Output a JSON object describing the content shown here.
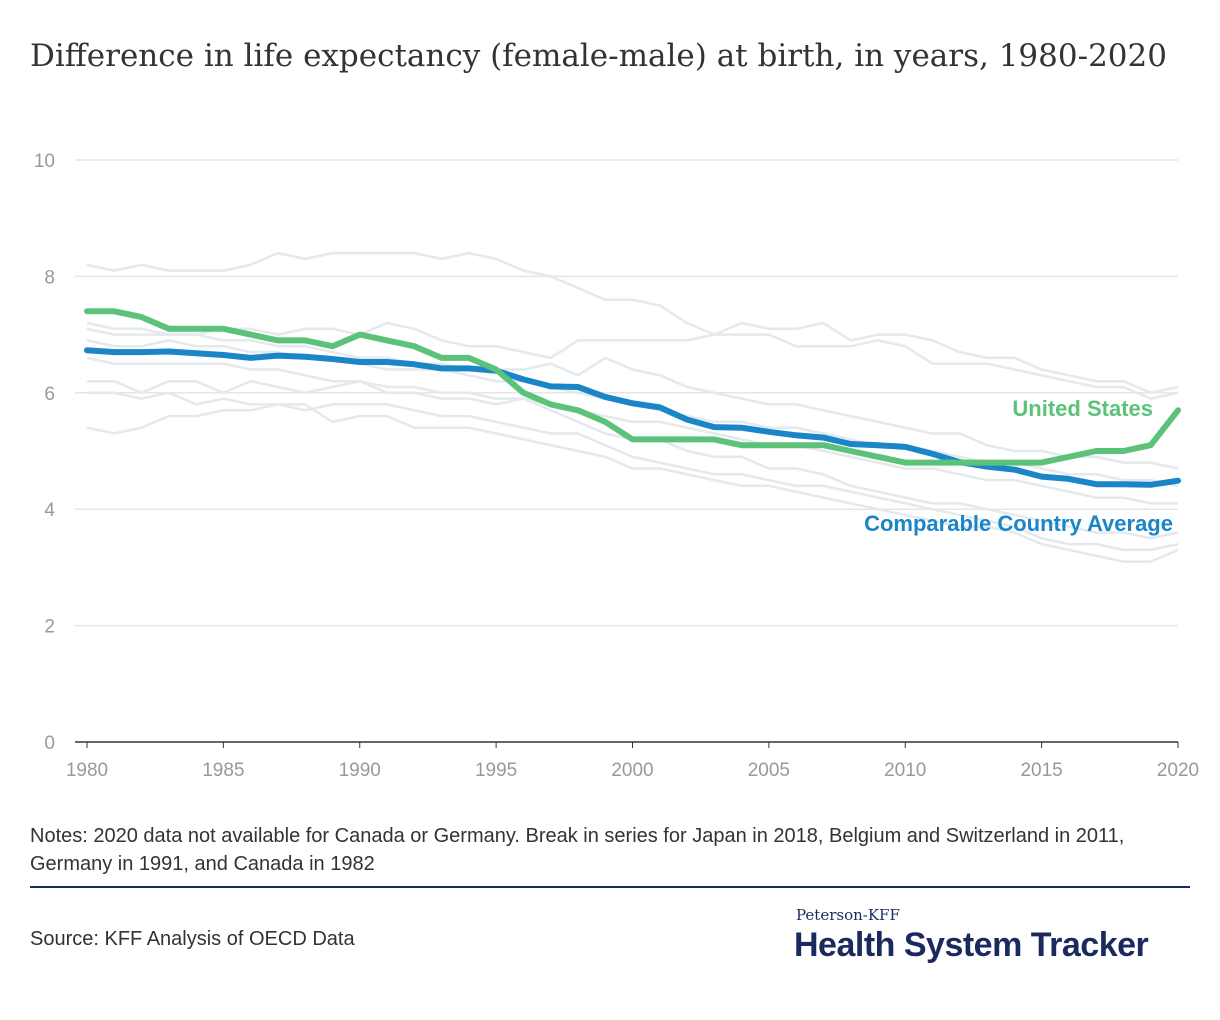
{
  "title": "Difference in life expectancy (female-male) at birth, in years, 1980-2020",
  "notes": "Notes: 2020 data not available for Canada or Germany. Break in series for Japan in 2018, Belgium and Switzerland in 2011, Germany in 1991, and Canada in 1982",
  "source": "Source: KFF Analysis of OECD Data",
  "brand": {
    "subtitle": "Peterson-KFF",
    "name": "Health System Tracker"
  },
  "colors": {
    "us": "#5cc279",
    "average": "#1a86c8",
    "countries": "#e4e9ed",
    "grid": "#e6e6e6",
    "tick": "#999999",
    "brand": "#1b2a5e"
  },
  "chart_data": {
    "type": "line",
    "xlim": [
      1980,
      2020
    ],
    "ylim": [
      0,
      10
    ],
    "yticks": [
      0,
      2,
      4,
      6,
      8,
      10
    ],
    "xticks": [
      1980,
      1985,
      1990,
      1995,
      2000,
      2005,
      2010,
      2015,
      2020
    ],
    "grid": true,
    "x": [
      1980,
      1981,
      1982,
      1983,
      1984,
      1985,
      1986,
      1987,
      1988,
      1989,
      1990,
      1991,
      1992,
      1993,
      1994,
      1995,
      1996,
      1997,
      1998,
      1999,
      2000,
      2001,
      2002,
      2003,
      2004,
      2005,
      2006,
      2007,
      2008,
      2009,
      2010,
      2011,
      2012,
      2013,
      2014,
      2015,
      2016,
      2017,
      2018,
      2019,
      2020
    ],
    "series": [
      {
        "name": "United States",
        "role": "highlight",
        "color": "#5cc279",
        "values": [
          7.4,
          7.4,
          7.3,
          7.1,
          7.1,
          7.1,
          7.0,
          6.9,
          6.9,
          6.8,
          7.0,
          6.9,
          6.8,
          6.6,
          6.6,
          6.4,
          6.0,
          5.8,
          5.7,
          5.5,
          5.2,
          5.2,
          5.2,
          5.2,
          5.1,
          5.1,
          5.1,
          5.1,
          5.0,
          4.9,
          4.8,
          4.8,
          4.8,
          4.8,
          4.8,
          4.8,
          4.9,
          5.0,
          5.0,
          5.1,
          5.7
        ]
      },
      {
        "name": "Comparable Country Average",
        "role": "highlight",
        "color": "#1a86c8",
        "values": [
          6.73,
          6.7,
          6.7,
          6.71,
          6.68,
          6.65,
          6.6,
          6.64,
          6.62,
          6.58,
          6.53,
          6.53,
          6.49,
          6.42,
          6.42,
          6.38,
          6.23,
          6.11,
          6.1,
          5.93,
          5.82,
          5.75,
          5.54,
          5.41,
          5.4,
          5.33,
          5.27,
          5.23,
          5.12,
          5.1,
          5.07,
          4.95,
          4.81,
          4.73,
          4.68,
          4.56,
          4.52,
          4.43,
          4.43,
          4.42,
          4.49
        ]
      },
      {
        "role": "background",
        "values": [
          8.2,
          8.1,
          8.2,
          8.1,
          8.1,
          8.1,
          8.2,
          8.4,
          8.3,
          8.4,
          8.4,
          8.4,
          8.4,
          8.3,
          8.4,
          8.3,
          8.1,
          8.0,
          7.8,
          7.6,
          7.6,
          7.5,
          7.2,
          7.0,
          7.0,
          7.0,
          6.8,
          6.8,
          6.8,
          6.9,
          6.8,
          6.5,
          6.5,
          6.5,
          6.4,
          6.3,
          6.2,
          6.1,
          6.1,
          5.9,
          6.0
        ]
      },
      {
        "role": "background",
        "values": [
          7.1,
          7.0,
          7.0,
          7.0,
          7.0,
          7.1,
          7.1,
          7.0,
          7.1,
          7.1,
          7.0,
          7.2,
          7.1,
          6.9,
          6.8,
          6.8,
          6.7,
          6.6,
          6.9,
          6.9,
          6.9,
          6.9,
          6.9,
          7.0,
          7.2,
          7.1,
          7.1,
          7.2,
          6.9,
          7.0,
          7.0,
          6.9,
          6.7,
          6.6,
          6.6,
          6.4,
          6.3,
          6.2,
          6.2,
          6.0,
          6.1
        ]
      },
      {
        "role": "background",
        "values": [
          7.2,
          7.1,
          7.1,
          7.0,
          7.0,
          6.9,
          6.9,
          6.8,
          6.8,
          6.7,
          6.6,
          6.6,
          6.5,
          6.5,
          6.4,
          6.4,
          6.4,
          6.5,
          6.3,
          6.6,
          6.4,
          6.3,
          6.1,
          6.0,
          5.9,
          5.8,
          5.8,
          5.7,
          5.6,
          5.5,
          5.4,
          5.3,
          5.3,
          5.1,
          5.0,
          5.0,
          4.9,
          4.9,
          4.8,
          4.8,
          4.7
        ]
      },
      {
        "role": "background",
        "values": [
          6.9,
          6.8,
          6.8,
          6.9,
          6.8,
          6.8,
          6.7,
          6.7,
          6.6,
          6.6,
          6.5,
          6.4,
          6.4,
          6.4,
          6.3,
          6.2,
          6.2,
          6.1,
          6.0,
          5.9,
          5.8,
          5.7,
          5.6,
          5.5,
          5.5,
          5.4,
          5.4,
          5.3,
          5.2,
          5.1,
          5.1,
          5.0,
          4.9,
          4.8,
          4.8,
          4.7,
          4.6,
          4.6,
          4.5,
          4.5,
          4.4
        ]
      },
      {
        "role": "background",
        "values": [
          6.6,
          6.5,
          6.5,
          6.5,
          6.5,
          6.5,
          6.4,
          6.4,
          6.3,
          6.2,
          6.2,
          6.1,
          6.1,
          6.0,
          6.0,
          5.9,
          5.9,
          5.8,
          5.7,
          5.6,
          5.5,
          5.5,
          5.4,
          5.3,
          5.2,
          5.1,
          5.1,
          5.0,
          4.9,
          4.8,
          4.7,
          4.7,
          4.6,
          4.5,
          4.5,
          4.4,
          4.3,
          4.2,
          4.2,
          4.1,
          4.1
        ]
      },
      {
        "role": "background",
        "values": [
          6.2,
          6.2,
          6.0,
          6.2,
          6.2,
          6.0,
          6.2,
          6.1,
          6.0,
          6.1,
          6.2,
          6.0,
          6.0,
          5.9,
          5.9,
          5.8,
          5.9,
          5.7,
          5.5,
          5.3,
          5.2,
          5.2,
          5.0,
          4.9,
          4.9,
          4.7,
          4.7,
          4.6,
          4.4,
          4.3,
          4.2,
          4.1,
          4.1,
          4.0,
          3.9,
          3.8,
          3.7,
          3.6,
          3.6,
          3.5,
          3.6
        ]
      },
      {
        "role": "background",
        "values": [
          6.0,
          6.0,
          5.9,
          6.0,
          5.8,
          5.9,
          5.8,
          5.8,
          5.7,
          5.8,
          5.8,
          5.8,
          5.7,
          5.6,
          5.6,
          5.5,
          5.4,
          5.3,
          5.3,
          5.1,
          4.9,
          4.8,
          4.7,
          4.6,
          4.6,
          4.5,
          4.4,
          4.4,
          4.3,
          4.2,
          4.1,
          4.0,
          3.9,
          3.8,
          3.7,
          3.5,
          3.4,
          3.4,
          3.3,
          3.3,
          3.4
        ]
      },
      {
        "role": "background",
        "values": [
          5.4,
          5.3,
          5.4,
          5.6,
          5.6,
          5.7,
          5.7,
          5.8,
          5.8,
          5.5,
          5.6,
          5.6,
          5.4,
          5.4,
          5.4,
          5.3,
          5.2,
          5.1,
          5.0,
          4.9,
          4.7,
          4.7,
          4.6,
          4.5,
          4.4,
          4.4,
          4.3,
          4.2,
          4.1,
          4.0,
          3.9,
          3.8,
          3.7,
          3.7,
          3.6,
          3.4,
          3.3,
          3.2,
          3.1,
          3.1,
          3.3
        ]
      }
    ]
  }
}
